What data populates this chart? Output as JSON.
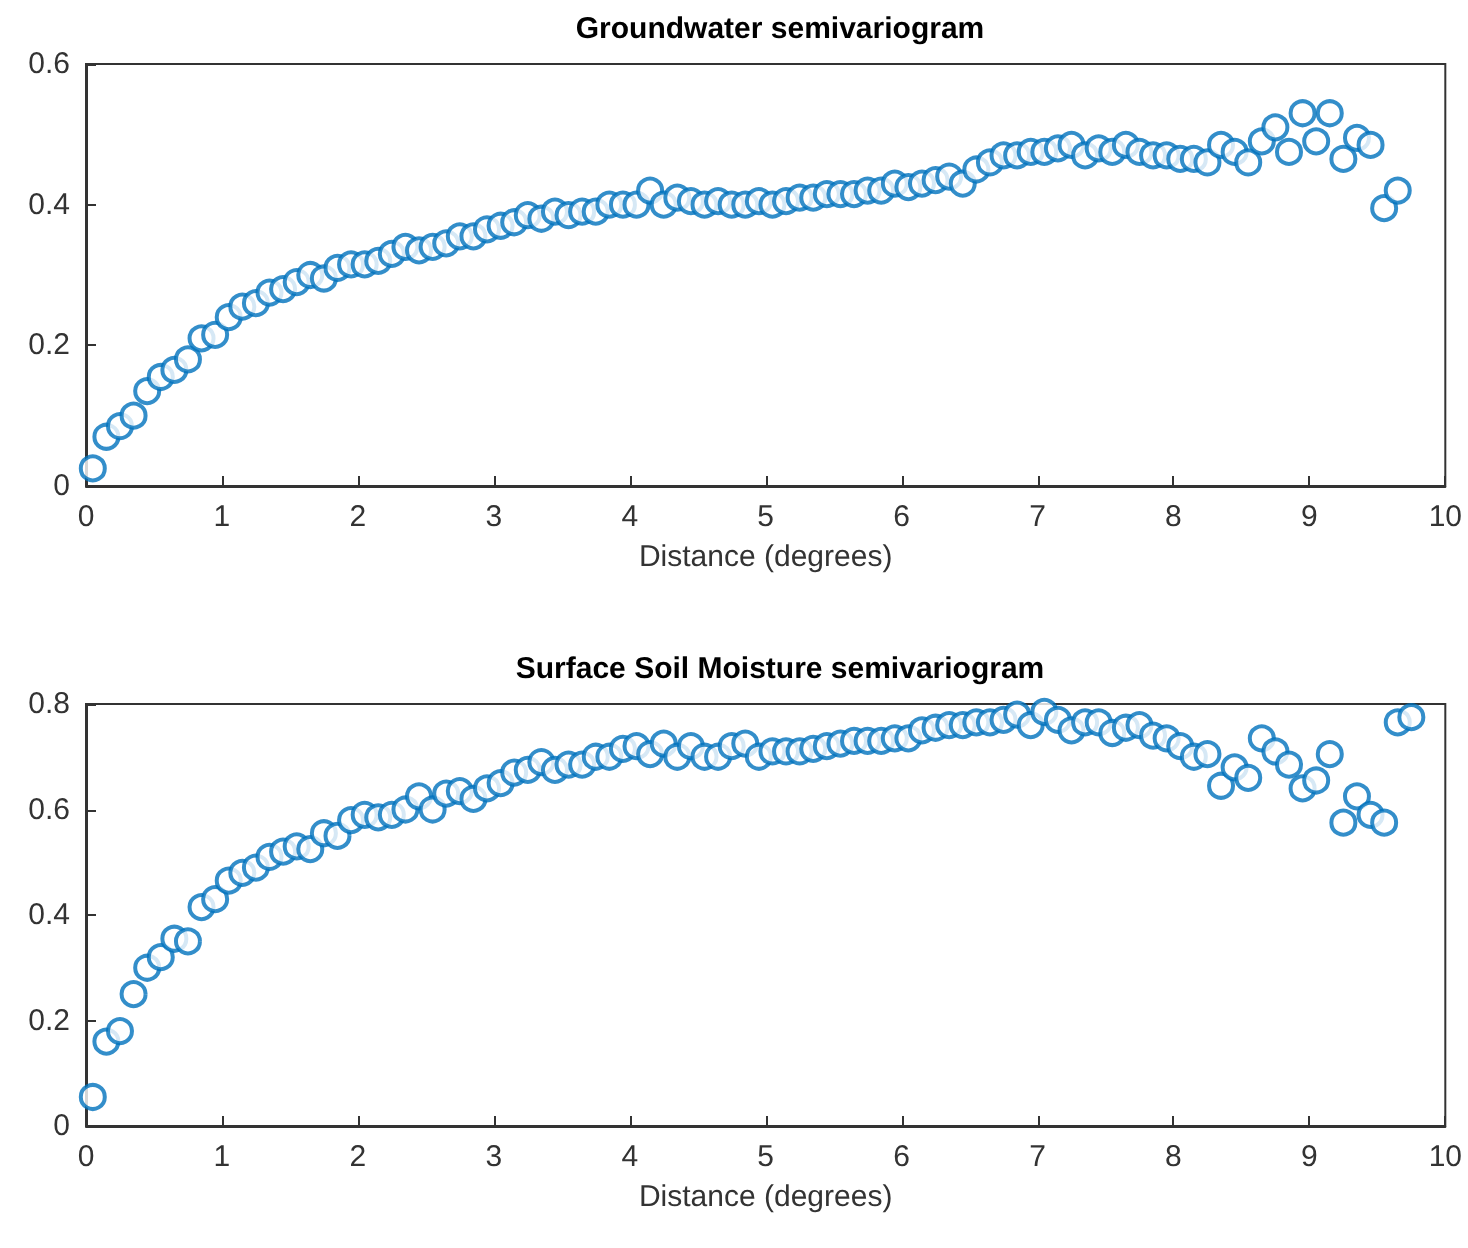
{
  "chart_data": [
    {
      "type": "scatter",
      "title": "Groundwater semivariogram",
      "xlabel": "Distance (degrees)",
      "marker": "circle",
      "color": "#0072bd",
      "xlim": [
        0,
        10
      ],
      "xticks": [
        0,
        1,
        2,
        3,
        4,
        5,
        6,
        7,
        8,
        9,
        10
      ],
      "ylim": [
        0,
        0.6
      ],
      "yticks": [
        0,
        0.2,
        0.4,
        0.6
      ],
      "x": [
        0.05,
        0.15,
        0.25,
        0.35,
        0.45,
        0.55,
        0.65,
        0.75,
        0.85,
        0.95,
        1.05,
        1.15,
        1.25,
        1.35,
        1.45,
        1.55,
        1.65,
        1.75,
        1.85,
        1.95,
        2.05,
        2.15,
        2.25,
        2.35,
        2.45,
        2.55,
        2.65,
        2.75,
        2.85,
        2.95,
        3.05,
        3.15,
        3.25,
        3.35,
        3.45,
        3.55,
        3.65,
        3.75,
        3.85,
        3.95,
        4.05,
        4.15,
        4.25,
        4.35,
        4.45,
        4.55,
        4.65,
        4.75,
        4.85,
        4.95,
        5.05,
        5.15,
        5.25,
        5.35,
        5.45,
        5.55,
        5.65,
        5.75,
        5.85,
        5.95,
        6.05,
        6.15,
        6.25,
        6.35,
        6.45,
        6.55,
        6.65,
        6.75,
        6.85,
        6.95,
        7.05,
        7.15,
        7.25,
        7.35,
        7.45,
        7.55,
        7.65,
        7.75,
        7.85,
        7.95,
        8.05,
        8.15,
        8.25,
        8.35,
        8.45,
        8.55,
        8.65,
        8.75,
        8.85,
        8.95,
        9.05,
        9.15,
        9.25,
        9.35,
        9.45,
        9.55,
        9.65
      ],
      "values": [
        0.025,
        0.07,
        0.085,
        0.1,
        0.135,
        0.155,
        0.165,
        0.18,
        0.21,
        0.215,
        0.24,
        0.255,
        0.26,
        0.275,
        0.28,
        0.29,
        0.3,
        0.295,
        0.31,
        0.315,
        0.315,
        0.32,
        0.33,
        0.34,
        0.335,
        0.34,
        0.345,
        0.355,
        0.355,
        0.365,
        0.37,
        0.375,
        0.385,
        0.38,
        0.39,
        0.385,
        0.39,
        0.39,
        0.4,
        0.4,
        0.4,
        0.42,
        0.4,
        0.41,
        0.405,
        0.4,
        0.405,
        0.4,
        0.4,
        0.405,
        0.4,
        0.405,
        0.41,
        0.41,
        0.415,
        0.415,
        0.415,
        0.42,
        0.42,
        0.43,
        0.425,
        0.43,
        0.435,
        0.44,
        0.43,
        0.45,
        0.46,
        0.47,
        0.47,
        0.475,
        0.475,
        0.48,
        0.485,
        0.47,
        0.48,
        0.475,
        0.485,
        0.475,
        0.47,
        0.47,
        0.465,
        0.465,
        0.46,
        0.485,
        0.475,
        0.46,
        0.49,
        0.51,
        0.475,
        0.53,
        0.49,
        0.53,
        0.465,
        0.495,
        0.485,
        0.395,
        0.42
      ]
    },
    {
      "type": "scatter",
      "title": "Surface Soil Moisture semivariogram",
      "xlabel": "Distance (degrees)",
      "marker": "circle",
      "color": "#0072bd",
      "xlim": [
        0,
        10
      ],
      "xticks": [
        0,
        1,
        2,
        3,
        4,
        5,
        6,
        7,
        8,
        9,
        10
      ],
      "ylim": [
        0,
        0.8
      ],
      "yticks": [
        0,
        0.2,
        0.4,
        0.6,
        0.8
      ],
      "x": [
        0.05,
        0.15,
        0.25,
        0.35,
        0.45,
        0.55,
        0.65,
        0.75,
        0.85,
        0.95,
        1.05,
        1.15,
        1.25,
        1.35,
        1.45,
        1.55,
        1.65,
        1.75,
        1.85,
        1.95,
        2.05,
        2.15,
        2.25,
        2.35,
        2.45,
        2.55,
        2.65,
        2.75,
        2.85,
        2.95,
        3.05,
        3.15,
        3.25,
        3.35,
        3.45,
        3.55,
        3.65,
        3.75,
        3.85,
        3.95,
        4.05,
        4.15,
        4.25,
        4.35,
        4.45,
        4.55,
        4.65,
        4.75,
        4.85,
        4.95,
        5.05,
        5.15,
        5.25,
        5.35,
        5.45,
        5.55,
        5.65,
        5.75,
        5.85,
        5.95,
        6.05,
        6.15,
        6.25,
        6.35,
        6.45,
        6.55,
        6.65,
        6.75,
        6.85,
        6.95,
        7.05,
        7.15,
        7.25,
        7.35,
        7.45,
        7.55,
        7.65,
        7.75,
        7.85,
        7.95,
        8.05,
        8.15,
        8.25,
        8.35,
        8.45,
        8.55,
        8.65,
        8.75,
        8.85,
        8.95,
        9.05,
        9.15,
        9.25,
        9.35,
        9.45,
        9.55,
        9.65,
        9.75
      ],
      "values": [
        0.055,
        0.16,
        0.18,
        0.25,
        0.3,
        0.32,
        0.355,
        0.35,
        0.415,
        0.43,
        0.465,
        0.48,
        0.49,
        0.51,
        0.52,
        0.53,
        0.525,
        0.555,
        0.55,
        0.58,
        0.59,
        0.585,
        0.59,
        0.6,
        0.625,
        0.6,
        0.63,
        0.635,
        0.62,
        0.64,
        0.65,
        0.67,
        0.675,
        0.69,
        0.675,
        0.685,
        0.685,
        0.7,
        0.7,
        0.715,
        0.72,
        0.705,
        0.725,
        0.7,
        0.72,
        0.7,
        0.7,
        0.72,
        0.725,
        0.7,
        0.71,
        0.71,
        0.71,
        0.715,
        0.72,
        0.725,
        0.73,
        0.73,
        0.73,
        0.735,
        0.735,
        0.75,
        0.755,
        0.76,
        0.76,
        0.765,
        0.765,
        0.77,
        0.78,
        0.76,
        0.785,
        0.77,
        0.75,
        0.765,
        0.765,
        0.745,
        0.755,
        0.76,
        0.74,
        0.735,
        0.72,
        0.7,
        0.705,
        0.645,
        0.68,
        0.66,
        0.735,
        0.71,
        0.685,
        0.64,
        0.655,
        0.705,
        0.575,
        0.625,
        0.59,
        0.575,
        0.765,
        0.775
      ]
    }
  ]
}
